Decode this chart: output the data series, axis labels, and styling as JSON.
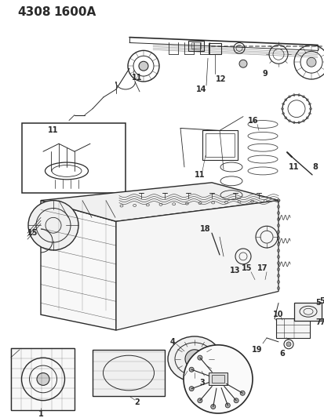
{
  "title_code": "4308",
  "title_sub": "1600A",
  "bg_color": "#f5f5f0",
  "line_color": "#2a2a2a",
  "fig_w": 4.14,
  "fig_h": 5.33,
  "dpi": 100
}
